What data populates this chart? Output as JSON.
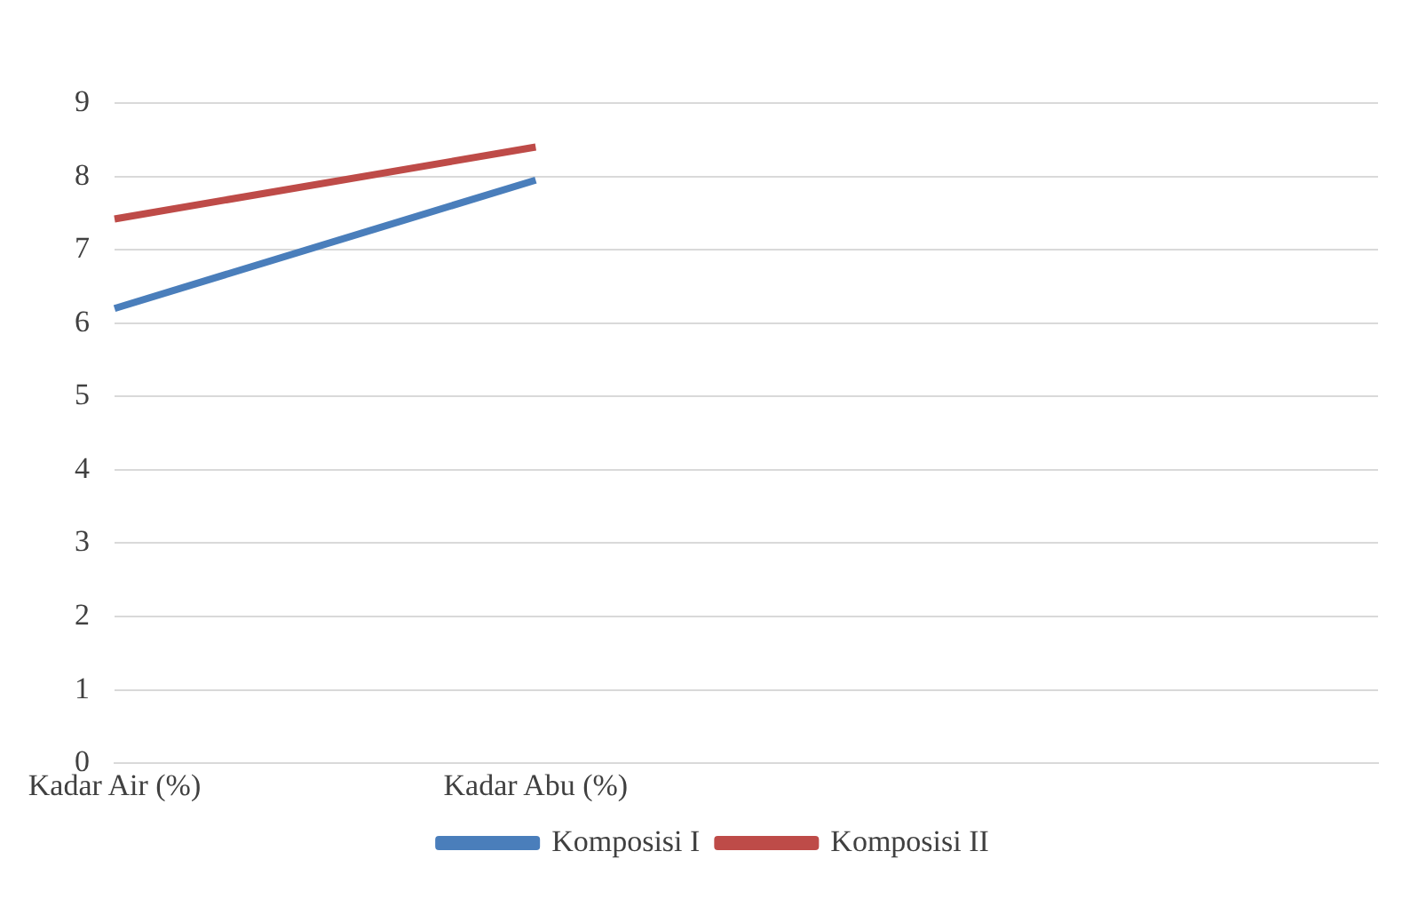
{
  "chart_data": {
    "type": "line",
    "categories": [
      "Kadar Air (%)",
      "Kadar Abu (%)",
      null,
      null
    ],
    "series": [
      {
        "name": "Komposisi I",
        "color": "#4a7ebb",
        "values": [
          6.2,
          7.95,
          null,
          null
        ]
      },
      {
        "name": "Komposisi II",
        "color": "#be4b48",
        "values": [
          7.42,
          8.4,
          null,
          null
        ]
      }
    ],
    "ylim": [
      0,
      9
    ],
    "yticks": [
      0,
      1,
      2,
      3,
      4,
      5,
      6,
      7,
      8,
      9
    ],
    "grid": "y",
    "legend": "bottom",
    "marker": "none",
    "line_style": "solid"
  }
}
